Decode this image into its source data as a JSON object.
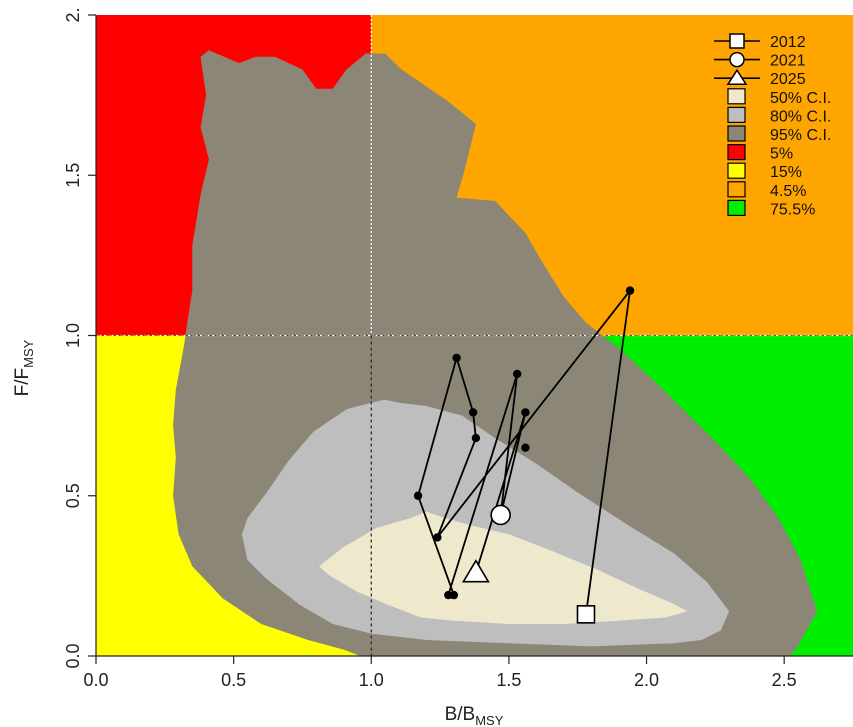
{
  "chart_data": {
    "type": "scatter",
    "title": "",
    "xlabel": {
      "main": "B/B",
      "sub": "MSY"
    },
    "ylabel": {
      "main": "F/F",
      "sub": "MSY"
    },
    "xlim": [
      0,
      2.75
    ],
    "ylim": [
      0,
      2.0
    ],
    "x_ticks": [
      {
        "value": 0,
        "label": "0.0"
      },
      {
        "value": 0.5,
        "label": "0.5"
      },
      {
        "value": 1.0,
        "label": "1.0"
      },
      {
        "value": 1.5,
        "label": "1.5"
      },
      {
        "value": 2.0,
        "label": "2.0"
      },
      {
        "value": 2.5,
        "label": "2.5"
      }
    ],
    "y_ticks": [
      {
        "value": 0,
        "label": "0.0"
      },
      {
        "value": 0.5,
        "label": "0.5"
      },
      {
        "value": 1.0,
        "label": "1.0"
      },
      {
        "value": 1.5,
        "label": "1.5"
      },
      {
        "value": 2.0,
        "label": "2."
      }
    ],
    "reference_lines": {
      "x": 1.0,
      "y": 1.0
    },
    "quadrants": [
      {
        "name": "overfished-overfishing",
        "color": "#ff0000",
        "percent": "5%"
      },
      {
        "name": "overfished-only",
        "color": "#ffff00",
        "percent": "15%"
      },
      {
        "name": "overfishing-only",
        "color": "#ffa500",
        "percent": "4.5%"
      },
      {
        "name": "healthy",
        "color": "#00ee00",
        "percent": "75.5%"
      }
    ],
    "confidence_regions": [
      {
        "level": "95% C.I.",
        "color": "#8b8676",
        "polygon": [
          [
            0.38,
            1.87
          ],
          [
            0.41,
            1.89
          ],
          [
            0.52,
            1.85
          ],
          [
            0.58,
            1.87
          ],
          [
            0.65,
            1.87
          ],
          [
            0.75,
            1.83
          ],
          [
            0.8,
            1.77
          ],
          [
            0.86,
            1.77
          ],
          [
            0.91,
            1.83
          ],
          [
            0.98,
            1.88
          ],
          [
            1.05,
            1.88
          ],
          [
            1.11,
            1.83
          ],
          [
            1.28,
            1.73
          ],
          [
            1.38,
            1.66
          ],
          [
            1.34,
            1.52
          ],
          [
            1.31,
            1.43
          ],
          [
            1.45,
            1.42
          ],
          [
            1.56,
            1.32
          ],
          [
            1.62,
            1.23
          ],
          [
            1.7,
            1.12
          ],
          [
            1.78,
            1.04
          ],
          [
            1.9,
            0.96
          ],
          [
            2.05,
            0.84
          ],
          [
            2.12,
            0.78
          ],
          [
            2.25,
            0.67
          ],
          [
            2.38,
            0.55
          ],
          [
            2.48,
            0.43
          ],
          [
            2.56,
            0.3
          ],
          [
            2.62,
            0.14
          ],
          [
            2.55,
            0.03
          ],
          [
            2.52,
            0
          ],
          [
            1.5,
            0
          ],
          [
            0.96,
            0
          ],
          [
            0.9,
            0.02
          ],
          [
            0.77,
            0.05
          ],
          [
            0.6,
            0.1
          ],
          [
            0.46,
            0.18
          ],
          [
            0.35,
            0.28
          ],
          [
            0.3,
            0.38
          ],
          [
            0.28,
            0.5
          ],
          [
            0.29,
            0.62
          ],
          [
            0.28,
            0.72
          ],
          [
            0.29,
            0.83
          ],
          [
            0.32,
            0.97
          ],
          [
            0.33,
            1.03
          ],
          [
            0.35,
            1.14
          ],
          [
            0.35,
            1.28
          ],
          [
            0.38,
            1.44
          ],
          [
            0.41,
            1.55
          ],
          [
            0.38,
            1.65
          ],
          [
            0.4,
            1.75
          ]
        ]
      },
      {
        "level": "80% C.I.",
        "color": "#bebebe",
        "polygon": [
          [
            0.55,
            0.43
          ],
          [
            0.62,
            0.51
          ],
          [
            0.7,
            0.61
          ],
          [
            0.79,
            0.7
          ],
          [
            0.91,
            0.77
          ],
          [
            1.0,
            0.79
          ],
          [
            1.05,
            0.8
          ],
          [
            1.1,
            0.79
          ],
          [
            1.2,
            0.78
          ],
          [
            1.33,
            0.75
          ],
          [
            1.45,
            0.68
          ],
          [
            1.6,
            0.6
          ],
          [
            1.75,
            0.51
          ],
          [
            1.93,
            0.41
          ],
          [
            2.1,
            0.32
          ],
          [
            2.22,
            0.23
          ],
          [
            2.3,
            0.14
          ],
          [
            2.27,
            0.08
          ],
          [
            2.2,
            0.05
          ],
          [
            2.1,
            0.04
          ],
          [
            1.8,
            0.03
          ],
          [
            1.5,
            0.04
          ],
          [
            1.2,
            0.05
          ],
          [
            1.0,
            0.07
          ],
          [
            0.86,
            0.1
          ],
          [
            0.74,
            0.16
          ],
          [
            0.62,
            0.24
          ],
          [
            0.55,
            0.3
          ],
          [
            0.53,
            0.38
          ]
        ]
      },
      {
        "level": "50% C.I.",
        "color": "#eee8cd",
        "polygon": [
          [
            0.81,
            0.28
          ],
          [
            0.9,
            0.34
          ],
          [
            1.02,
            0.4
          ],
          [
            1.14,
            0.43
          ],
          [
            1.2,
            0.45
          ],
          [
            1.27,
            0.43
          ],
          [
            1.35,
            0.41
          ],
          [
            1.5,
            0.38
          ],
          [
            1.65,
            0.33
          ],
          [
            1.82,
            0.27
          ],
          [
            1.97,
            0.21
          ],
          [
            2.08,
            0.17
          ],
          [
            2.15,
            0.14
          ],
          [
            2.07,
            0.12
          ],
          [
            1.9,
            0.11
          ],
          [
            1.7,
            0.1
          ],
          [
            1.5,
            0.1
          ],
          [
            1.3,
            0.11
          ],
          [
            1.18,
            0.12
          ],
          [
            1.06,
            0.16
          ],
          [
            0.95,
            0.2
          ],
          [
            0.85,
            0.25
          ]
        ]
      }
    ],
    "trajectory": [
      [
        1.78,
        0.13
      ],
      [
        1.94,
        1.14
      ],
      [
        1.24,
        0.37
      ],
      [
        1.38,
        0.68
      ],
      [
        1.37,
        0.76
      ],
      [
        1.31,
        0.93
      ],
      [
        1.17,
        0.5
      ],
      [
        1.3,
        0.19
      ],
      [
        1.28,
        0.19
      ],
      [
        1.53,
        0.88
      ],
      [
        1.47,
        0.44
      ],
      [
        1.56,
        0.76
      ],
      [
        1.38,
        0.26
      ]
    ],
    "highlighted_points": [
      {
        "label": "2012",
        "x": 1.78,
        "y": 0.13,
        "marker": "square"
      },
      {
        "label": "2021",
        "x": 1.47,
        "y": 0.44,
        "marker": "circle"
      },
      {
        "label": "2025",
        "x": 1.38,
        "y": 0.26,
        "marker": "triangle"
      }
    ],
    "extra_points": [
      [
        1.56,
        0.65
      ]
    ],
    "legend": {
      "placement": "top-right",
      "entries": [
        {
          "label": "2012",
          "kind": "line-square"
        },
        {
          "label": "2021",
          "kind": "line-circle"
        },
        {
          "label": "2025",
          "kind": "line-triangle"
        },
        {
          "label": "50% C.I.",
          "kind": "box",
          "color": "#eee8cd"
        },
        {
          "label": "80% C.I.",
          "kind": "box",
          "color": "#bebebe"
        },
        {
          "label": "95% C.I.",
          "kind": "box",
          "color": "#8b8676"
        },
        {
          "label": "5%",
          "kind": "box",
          "color": "#ff0000"
        },
        {
          "label": "15%",
          "kind": "box",
          "color": "#ffff00"
        },
        {
          "label": "4.5%",
          "kind": "box",
          "color": "#ffa500"
        },
        {
          "label": "75.5%",
          "kind": "box",
          "color": "#00ee00"
        }
      ]
    }
  }
}
